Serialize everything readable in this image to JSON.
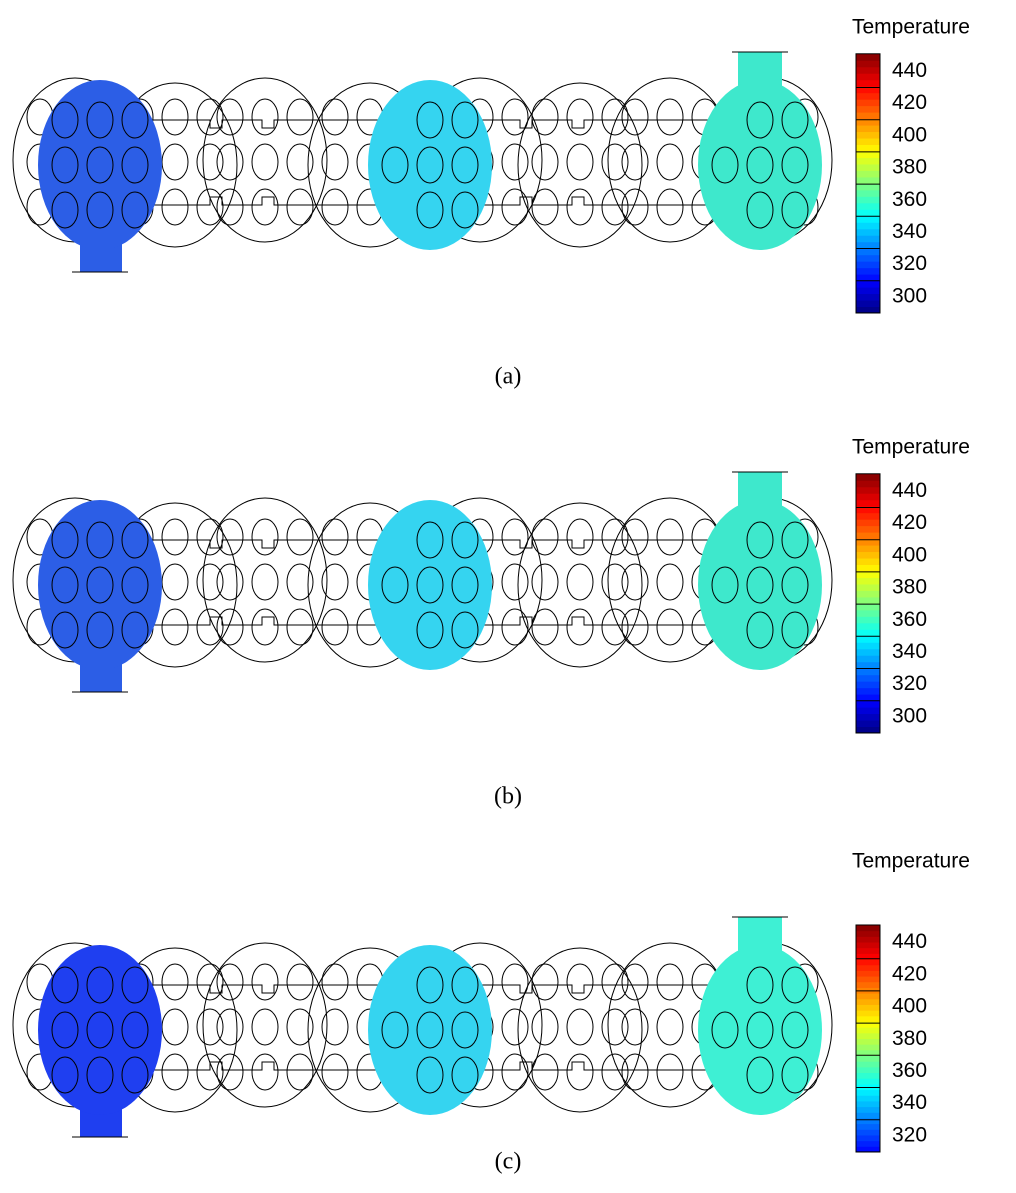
{
  "panels": [
    {
      "label": "(a)",
      "baffle_colors": [
        "#2c5ee6",
        "#35d4f0",
        "#3ee8cc"
      ],
      "legend": {
        "title": "Temperature",
        "range": [
          290,
          451
        ],
        "ticks": [
          300,
          320,
          340,
          360,
          380,
          400,
          420,
          440
        ]
      }
    },
    {
      "label": "(b)",
      "baffle_colors": [
        "#2c5ee6",
        "#35d4f0",
        "#3ee8cc"
      ],
      "legend": {
        "title": "Temperature",
        "range": [
          290,
          451
        ],
        "ticks": [
          300,
          320,
          340,
          360,
          380,
          400,
          420,
          440
        ]
      }
    },
    {
      "label": "(c)",
      "baffle_colors": [
        "#1f3ff0",
        "#35d4f0",
        "#3ef0d4"
      ],
      "legend": {
        "title": "Temperature",
        "range": [
          310,
          451
        ],
        "ticks": [
          320,
          340,
          360,
          380,
          400,
          420,
          440
        ]
      }
    }
  ]
}
